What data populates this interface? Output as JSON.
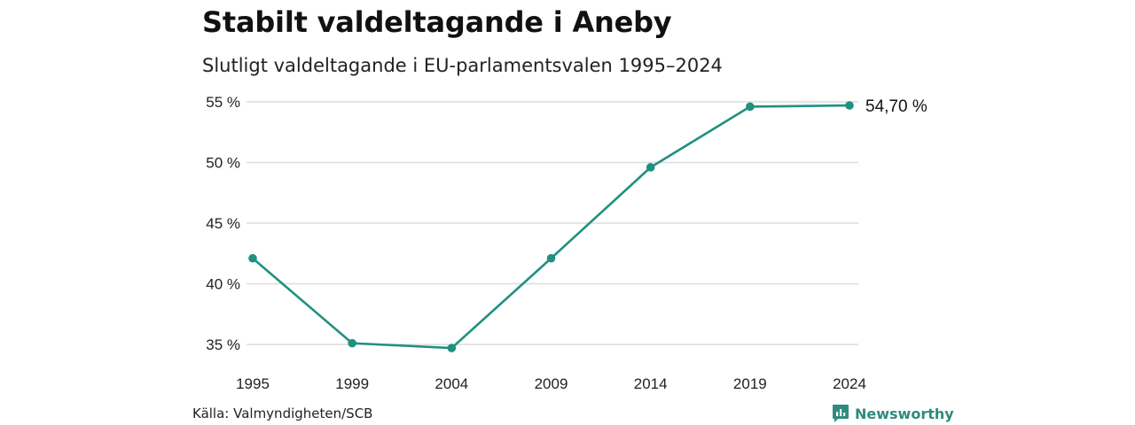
{
  "header": {
    "title": "Stabilt valdeltagande i Aneby",
    "subtitle": "Slutligt valdeltagande i EU-parlamentsvalen 1995–2024"
  },
  "chart_data": {
    "type": "line",
    "title": "Stabilt valdeltagande i Aneby",
    "subtitle": "Slutligt valdeltagande i EU-parlamentsvalen 1995–2024",
    "xlabel": "",
    "ylabel": "",
    "x": [
      "1995",
      "1999",
      "2004",
      "2009",
      "2014",
      "2019",
      "2024"
    ],
    "series": [
      {
        "values": [
          42.1,
          35.1,
          34.7,
          42.1,
          49.6,
          54.6,
          54.7
        ]
      }
    ],
    "yticks": [
      35,
      40,
      45,
      50,
      55
    ],
    "ytick_labels": [
      "35 %",
      "40 %",
      "45 %",
      "50 %",
      "55 %"
    ],
    "ylim": [
      34.4,
      55.5
    ],
    "grid": true,
    "end_label": "54,70 %",
    "line_color": "#1f9181"
  },
  "footer": {
    "source": "Källa: Valmyndigheten/SCB",
    "brand": "Newsworthy",
    "brand_icon": "newsworthy-logo-icon",
    "brand_color": "#2e8b7d"
  }
}
